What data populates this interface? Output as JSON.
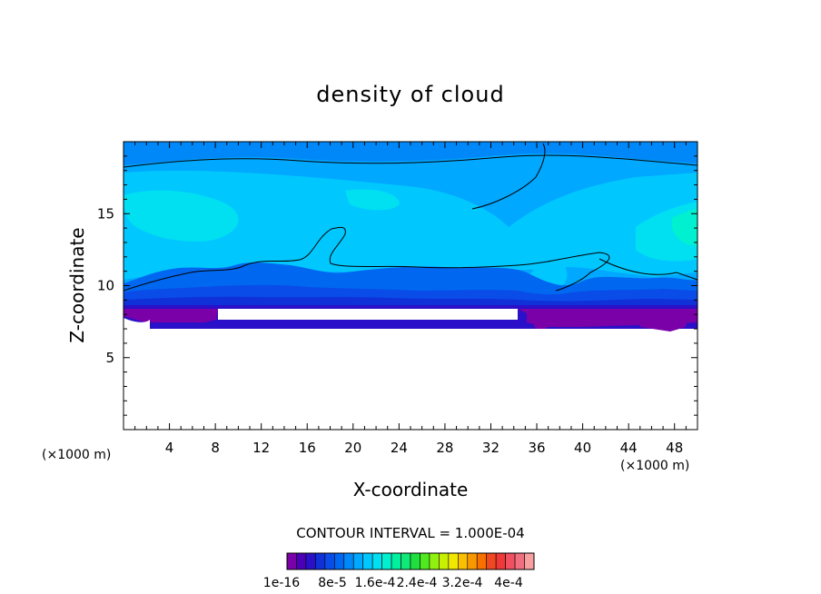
{
  "chart_data": {
    "type": "heatmap",
    "title": "density of cloud",
    "xlabel": "X-coordinate",
    "ylabel": "Z-coordinate",
    "x_unit_left": "(×1000 m)",
    "x_unit_right": "(×1000 m)",
    "xlim": [
      0,
      50
    ],
    "ylim": [
      0,
      20
    ],
    "x_ticks": [
      4,
      8,
      12,
      16,
      20,
      24,
      28,
      32,
      36,
      40,
      44,
      48
    ],
    "x_tick_labels": [
      "4",
      "8",
      "12",
      "16",
      "20",
      "24",
      "28",
      "32",
      "36",
      "40",
      "44",
      "48"
    ],
    "y_ticks": [
      5,
      10,
      15
    ],
    "y_tick_labels": [
      "5",
      "10",
      "15"
    ],
    "contour_interval_text": "CONTOUR INTERVAL = 1.000E-04",
    "colorbar": {
      "colors": [
        "#7a00a8",
        "#4b00b8",
        "#2a10c8",
        "#1030d8",
        "#0a4ce8",
        "#0068f0",
        "#0088f8",
        "#00a8ff",
        "#00c8ff",
        "#00e0f0",
        "#00f0d0",
        "#00f0a0",
        "#10e878",
        "#20e040",
        "#50e820",
        "#90f010",
        "#c8f000",
        "#f0e800",
        "#f8c000",
        "#f89800",
        "#f87000",
        "#f04820",
        "#f03838",
        "#f05060",
        "#f07080",
        "#f8a0a0"
      ],
      "labels": [
        "1e-16",
        "8e-5",
        "1.6e-4",
        "2.4e-4",
        "3.2e-4",
        "4e-4"
      ]
    }
  }
}
